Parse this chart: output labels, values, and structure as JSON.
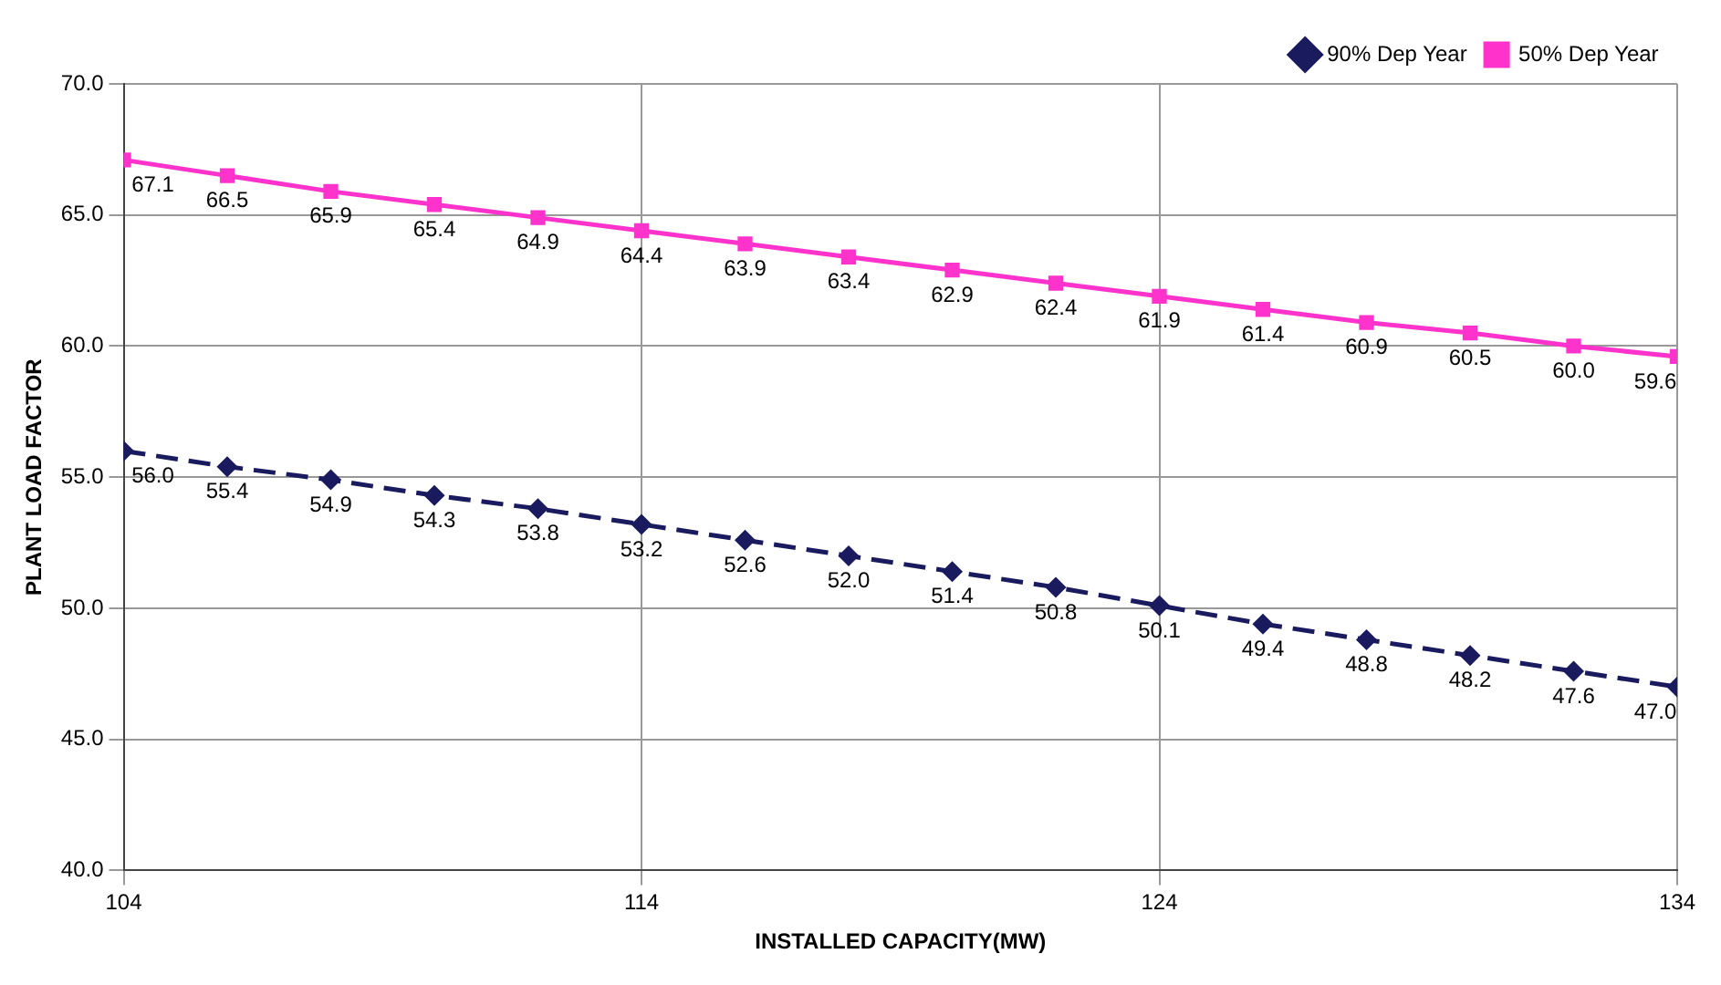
{
  "chart_data": {
    "type": "line",
    "xlabel": "INSTALLED CAPACITY(MW)",
    "ylabel": "PLANT LOAD FACTOR",
    "x": [
      104,
      106,
      108,
      110,
      112,
      114,
      116,
      118,
      120,
      122,
      124,
      126,
      128,
      130,
      132,
      134
    ],
    "xlim": [
      104,
      134
    ],
    "xticks": [
      104,
      114,
      124,
      134
    ],
    "ylim": [
      40,
      70
    ],
    "yticks": [
      {
        "value": 40,
        "label": "40.0"
      },
      {
        "value": 45,
        "label": "45.0"
      },
      {
        "value": 50,
        "label": "50.0"
      },
      {
        "value": 55,
        "label": "55.0"
      },
      {
        "value": 60,
        "label": "60.0"
      },
      {
        "value": 65,
        "label": "65.0"
      },
      {
        "value": 70,
        "label": "70.0"
      }
    ],
    "grid": true,
    "legend": "top right",
    "series": [
      {
        "name": "90% Dep Year",
        "color": "#1a1a5e",
        "marker": "diamond",
        "line_style": "dashed",
        "values": [
          56.0,
          55.4,
          54.9,
          54.3,
          53.8,
          53.2,
          52.6,
          52.0,
          51.4,
          50.8,
          50.1,
          49.4,
          48.8,
          48.2,
          47.6,
          47.0
        ],
        "value_labels": [
          "56.0",
          "55.4",
          "54.9",
          "54.3",
          "53.8",
          "53.2",
          "52.6",
          "52.0",
          "51.4",
          "50.8",
          "50.1",
          "49.4",
          "48.8",
          "48.2",
          "47.6",
          "47.0"
        ]
      },
      {
        "name": "50% Dep Year",
        "color": "#ff33cc",
        "marker": "square",
        "line_style": "solid",
        "values": [
          67.1,
          66.5,
          65.9,
          65.4,
          64.9,
          64.4,
          63.9,
          63.4,
          62.9,
          62.4,
          61.9,
          61.4,
          60.9,
          60.5,
          60.0,
          59.6
        ],
        "value_labels": [
          "67.1",
          "66.5",
          "65.9",
          "65.4",
          "64.9",
          "64.4",
          "63.9",
          "63.4",
          "62.9",
          "62.4",
          "61.9",
          "61.4",
          "60.9",
          "60.5",
          "60.0",
          "59.6"
        ]
      }
    ]
  }
}
